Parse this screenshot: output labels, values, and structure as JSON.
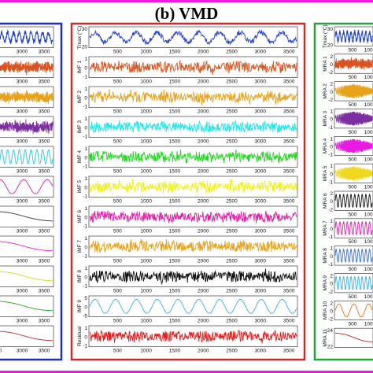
{
  "title": "(b) VMD",
  "colors": {
    "border_top": "#e81ce0",
    "left_panel": "#1f2fc8",
    "middle_panel": "#d42828",
    "right_panel": "#1fa83a"
  },
  "chart_data": [
    {
      "panel": "left",
      "type": "line",
      "series": [
        {
          "color": "#1f3fd4",
          "kind": "temp",
          "ticks": [
            "20"
          ]
        },
        {
          "color": "#d9531e",
          "kind": "noise"
        },
        {
          "color": "#e8a21a",
          "kind": "noise"
        },
        {
          "color": "#7b2fa0",
          "kind": "noise"
        },
        {
          "color": "#1ec8e8",
          "kind": "wave"
        },
        {
          "color": "#e51ca8",
          "kind": "slow"
        },
        {
          "color": "#333333",
          "kind": "trend"
        },
        {
          "color": "#e81ce0",
          "kind": "trend"
        },
        {
          "color": "#d8d81e",
          "kind": "trend"
        },
        {
          "color": "#22a822",
          "kind": "trend"
        },
        {
          "color": "#b03030",
          "kind": "trend"
        }
      ],
      "xticks": [
        "3000",
        "3500",
        "3000",
        "3500",
        "3000",
        "3500",
        "3000",
        "3500",
        "3000",
        "3500",
        "3000",
        "3500",
        "3000",
        "3500",
        "3000",
        "3500",
        "3000",
        "3500",
        "3000",
        "3500",
        "0",
        "3000",
        "3500"
      ]
    },
    {
      "panel": "middle",
      "type": "line",
      "xlim": [
        0,
        3650
      ],
      "xticks": [
        "500",
        "1000",
        "1500",
        "2000",
        "2500",
        "3000",
        "3500"
      ],
      "series": [
        {
          "label": "Tmax (°C)",
          "color": "#1f3fd4",
          "kind": "temp",
          "ticks": [
            "30",
            "20"
          ]
        },
        {
          "label": "IMF 1",
          "color": "#d9531e",
          "kind": "noise",
          "ticks": [
            "1",
            "0",
            "-1"
          ]
        },
        {
          "label": "IMF 2",
          "color": "#e8a21a",
          "kind": "noise",
          "ticks": [
            "1",
            "0",
            "-1"
          ]
        },
        {
          "label": "IMF 3",
          "color": "#1ee8e8",
          "kind": "noise",
          "ticks": [
            "1",
            "0",
            "-1"
          ]
        },
        {
          "label": "IMF 4",
          "color": "#1ed81e",
          "kind": "noise",
          "ticks": [
            "1",
            "0",
            "-1"
          ]
        },
        {
          "label": "IMF 5",
          "color": "#f0f01e",
          "kind": "noise",
          "ticks": [
            "1",
            "0",
            "-1"
          ]
        },
        {
          "label": "IMF 6",
          "color": "#e81ca8",
          "kind": "noise",
          "ticks": [
            "1",
            "0",
            "-1"
          ]
        },
        {
          "label": "IMF 7",
          "color": "#e8a21a",
          "kind": "noise",
          "ticks": [
            "1",
            "0",
            "-1"
          ]
        },
        {
          "label": "IMF 8",
          "color": "#111111",
          "kind": "noise",
          "ticks": [
            "1",
            "0",
            "-1"
          ]
        },
        {
          "label": "IMF 9",
          "color": "#3ab0e8",
          "kind": "wave",
          "ticks": [
            "5",
            "0",
            "-5"
          ]
        },
        {
          "label": "Residual",
          "color": "#e81c1c",
          "kind": "noise",
          "ticks": [
            "1",
            "0",
            "-1"
          ]
        }
      ]
    },
    {
      "panel": "right",
      "type": "line",
      "xticks": [
        "500",
        "1000",
        "500",
        "1000",
        "500",
        "1000",
        "500",
        "1000",
        "500",
        "1000",
        "500",
        "1000",
        "500",
        "1000",
        "500",
        "1000",
        "500",
        "1000",
        "500",
        "1000",
        "500",
        "1000"
      ],
      "series": [
        {
          "label": "Tmax (°C)",
          "color": "#1f3fd4",
          "kind": "temp",
          "ticks": [
            "30",
            "20"
          ]
        },
        {
          "label": "MRA 1",
          "color": "#d9531e",
          "kind": "noise",
          "ticks": [
            "2",
            "0",
            "-2"
          ]
        },
        {
          "label": "MRA 2",
          "color": "#e8a21a",
          "kind": "chirp",
          "ticks": [
            "2",
            "0",
            "-2"
          ]
        },
        {
          "label": "MRA 3",
          "color": "#7b2fa0",
          "kind": "chirp",
          "ticks": [
            "1",
            "0",
            "-1"
          ]
        },
        {
          "label": "MRA 4",
          "color": "#e81ce0",
          "kind": "chirp",
          "ticks": [
            "1",
            "0",
            "-1"
          ]
        },
        {
          "label": "MRA 5",
          "color": "#f0d81e",
          "kind": "chirp",
          "ticks": [
            "1",
            "0",
            "-1"
          ]
        },
        {
          "label": "MRA 6",
          "color": "#111111",
          "kind": "wave",
          "ticks": [
            "2",
            "0",
            "-2"
          ]
        },
        {
          "label": "MRA 7",
          "color": "#e81ca8",
          "kind": "wave",
          "ticks": [
            "1",
            "0",
            "-1"
          ]
        },
        {
          "label": "MRA 8",
          "color": "#3a6ed8",
          "kind": "wave",
          "ticks": [
            "1",
            "0",
            "-1"
          ]
        },
        {
          "label": "MRA 9",
          "color": "#3ab0e8",
          "kind": "wave",
          "ticks": [
            "2",
            "0",
            "-2"
          ]
        },
        {
          "label": "MRA 10",
          "color": "#e8701e",
          "kind": "slow",
          "ticks": [
            "2",
            "0",
            "-2"
          ]
        },
        {
          "label": "MRA 11",
          "color": "#d42828",
          "kind": "trend",
          "ticks": [
            "24",
            "22"
          ]
        }
      ]
    }
  ]
}
